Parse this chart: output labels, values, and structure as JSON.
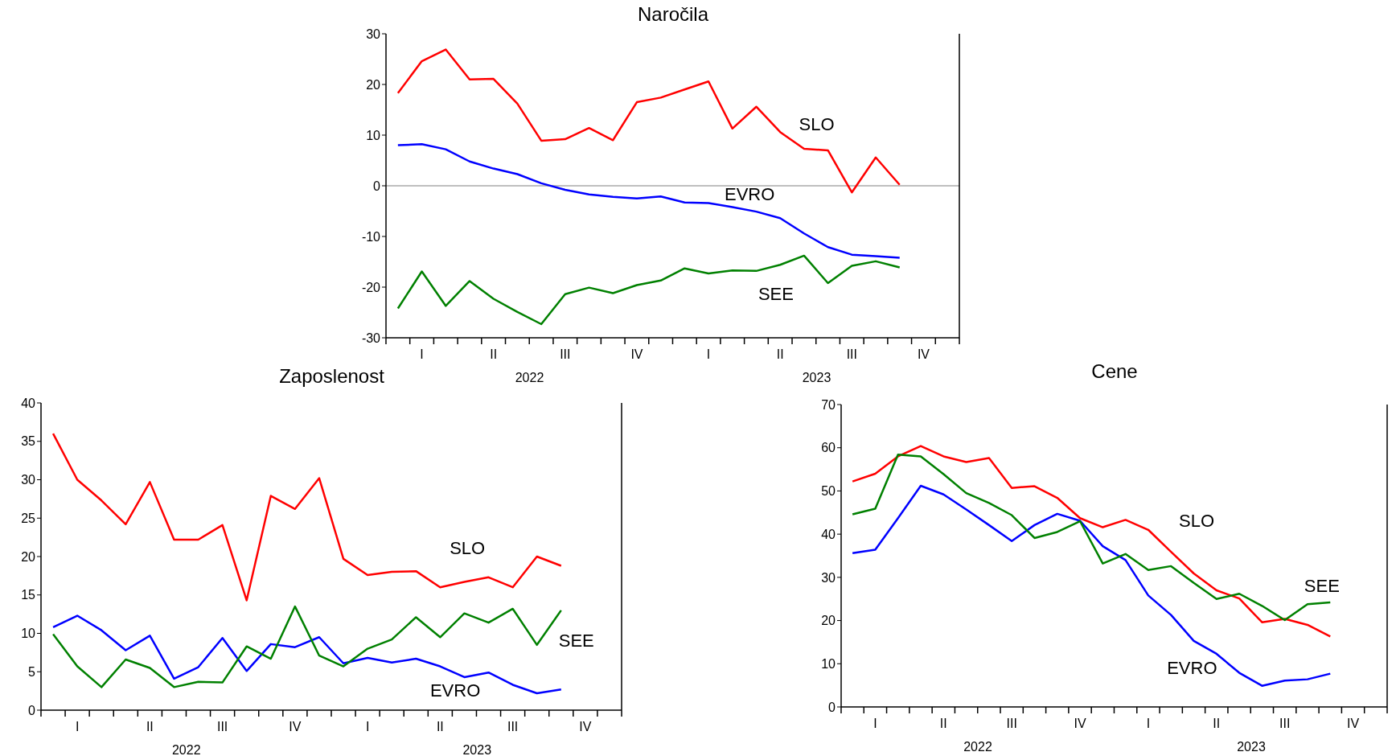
{
  "chart_data": [
    {
      "type": "line",
      "title": "Naročila",
      "categories": [
        null,
        "I",
        null,
        null,
        "II",
        null,
        null,
        "III",
        null,
        null,
        "IV",
        null,
        null,
        "I",
        null,
        null,
        "II",
        null,
        null,
        "III",
        null,
        null,
        "IV",
        null
      ],
      "ylim": [
        -30,
        30
      ],
      "yticks": [
        -30,
        -20,
        -10,
        0,
        10,
        20,
        30
      ],
      "ref_lines": [
        {
          "axis": "y",
          "value": 0,
          "color": "#808080"
        }
      ],
      "annotations": [
        "2022",
        "2023"
      ],
      "series": [
        {
          "name": "SLO",
          "color": "#ff0000",
          "values": [
            18.3,
            24.6,
            26.9,
            21.0,
            21.1,
            16.2,
            8.9,
            9.2,
            11.4,
            9.0,
            16.5,
            17.4,
            19.0,
            20.6,
            11.3,
            15.6,
            10.6,
            7.3,
            7.0,
            -1.3,
            5.6,
            0.2,
            null,
            null
          ]
        },
        {
          "name": "EVRO",
          "color": "#0000ff",
          "values": [
            8.0,
            8.2,
            7.2,
            4.8,
            3.4,
            2.3,
            0.5,
            -0.8,
            -1.7,
            -2.2,
            -2.5,
            -2.1,
            -3.3,
            -3.4,
            -4.2,
            -5.1,
            -6.4,
            -9.4,
            -12.1,
            -13.6,
            -13.9,
            -14.2,
            null,
            null
          ]
        },
        {
          "name": "SEE",
          "color": "#008000",
          "values": [
            -24.2,
            -16.9,
            -23.7,
            -18.8,
            -22.3,
            -24.9,
            -27.3,
            -21.4,
            -20.1,
            -21.2,
            -19.6,
            -18.7,
            -16.3,
            -17.3,
            -16.7,
            -16.8,
            -15.6,
            -13.8,
            -19.2,
            -15.8,
            -14.9,
            -16.1,
            null,
            null
          ]
        }
      ]
    },
    {
      "type": "line",
      "title": "Zaposlenost",
      "categories": [
        null,
        "I",
        null,
        null,
        "II",
        null,
        null,
        "III",
        null,
        null,
        "IV",
        null,
        null,
        "I",
        null,
        null,
        "II",
        null,
        null,
        "III",
        null,
        null,
        "IV",
        null
      ],
      "ylim": [
        0,
        40
      ],
      "yticks": [
        0,
        5,
        10,
        15,
        20,
        25,
        30,
        35,
        40
      ],
      "annotations": [
        "2022",
        "2023"
      ],
      "series": [
        {
          "name": "SLO",
          "color": "#ff0000",
          "values": [
            36.0,
            30.0,
            27.3,
            24.2,
            29.7,
            22.2,
            22.2,
            24.1,
            14.3,
            27.9,
            26.2,
            30.2,
            19.7,
            17.6,
            18.0,
            18.1,
            16.0,
            16.7,
            17.3,
            16.0,
            20.0,
            18.8,
            null,
            null
          ]
        },
        {
          "name": "EVRO",
          "color": "#0000ff",
          "values": [
            10.8,
            12.3,
            10.4,
            7.8,
            9.7,
            4.1,
            5.6,
            9.4,
            5.1,
            8.6,
            8.2,
            9.5,
            6.1,
            6.8,
            6.2,
            6.7,
            5.7,
            4.3,
            4.9,
            3.3,
            2.2,
            2.7,
            null,
            null
          ]
        },
        {
          "name": "SEE",
          "color": "#008000",
          "values": [
            9.9,
            5.7,
            3.0,
            6.6,
            5.5,
            3.0,
            3.7,
            3.6,
            8.3,
            6.7,
            13.5,
            7.1,
            5.7,
            8.0,
            9.2,
            12.1,
            9.5,
            12.6,
            11.4,
            13.2,
            8.5,
            13.0,
            null,
            null
          ]
        }
      ]
    },
    {
      "type": "line",
      "title": "Cene",
      "categories": [
        null,
        "I",
        null,
        null,
        "II",
        null,
        null,
        "III",
        null,
        null,
        "IV",
        null,
        null,
        "I",
        null,
        null,
        "II",
        null,
        null,
        "III",
        null,
        null,
        "IV",
        null
      ],
      "ylim": [
        0,
        70
      ],
      "yticks": [
        0,
        10,
        20,
        30,
        40,
        50,
        60,
        70
      ],
      "annotations": [
        "2022",
        "2023"
      ],
      "series": [
        {
          "name": "SLO",
          "color": "#ff0000",
          "values": [
            52.2,
            54.0,
            58.0,
            60.4,
            58.0,
            56.7,
            57.6,
            50.7,
            51.1,
            48.4,
            43.7,
            41.6,
            43.3,
            41.0,
            35.9,
            30.9,
            27.0,
            25.1,
            19.6,
            20.4,
            19.0,
            16.3,
            null,
            null
          ]
        },
        {
          "name": "EVRO",
          "color": "#0000ff",
          "values": [
            35.6,
            36.4,
            43.7,
            51.2,
            49.2,
            45.7,
            42.1,
            38.4,
            42.1,
            44.7,
            43.1,
            37.2,
            34.0,
            25.8,
            21.3,
            15.3,
            12.3,
            7.9,
            4.9,
            6.1,
            6.4,
            7.7,
            null,
            null
          ]
        },
        {
          "name": "SEE",
          "color": "#008000",
          "values": [
            44.6,
            45.9,
            58.4,
            58.0,
            53.9,
            49.5,
            47.2,
            44.4,
            39.1,
            40.5,
            43.0,
            33.2,
            35.4,
            31.7,
            32.6,
            28.7,
            25.0,
            26.2,
            23.4,
            20.1,
            23.8,
            24.2,
            null,
            null
          ]
        }
      ]
    }
  ]
}
